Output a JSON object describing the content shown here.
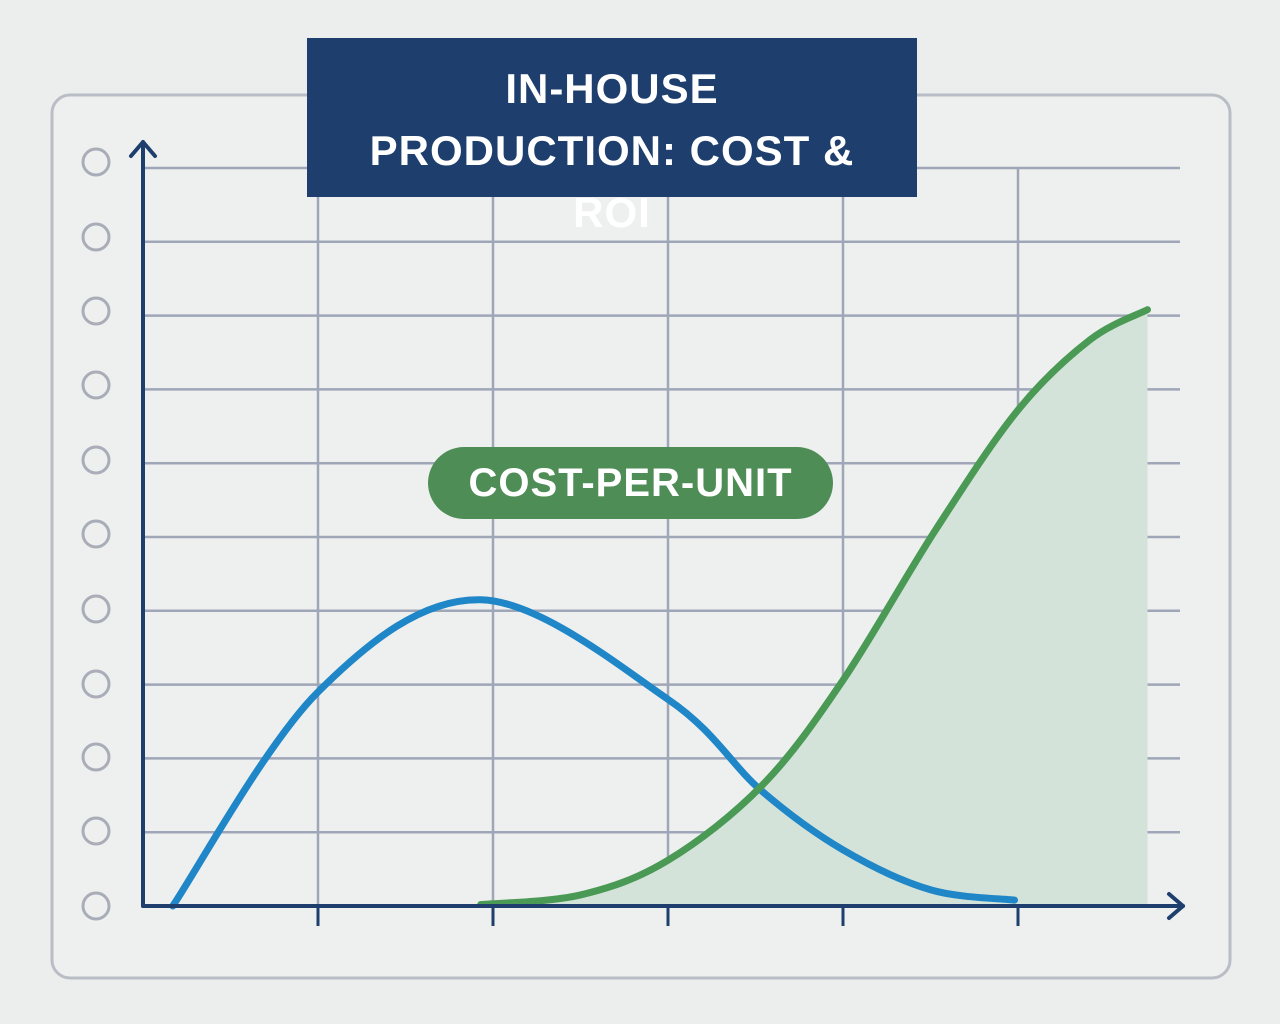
{
  "chart_data": {
    "type": "line",
    "title": "IN-HOUSE PRODUCTION: COST & ROI",
    "annotation": "COST-PER-UNIT",
    "xlim": [
      0,
      6
    ],
    "ylim": [
      0,
      10
    ],
    "xticks": [
      1,
      2,
      3,
      4,
      5
    ],
    "yticks": [
      0,
      1,
      2,
      3,
      4,
      5,
      6,
      7,
      8,
      9,
      10
    ],
    "grid": true,
    "series": [
      {
        "color": "#1f86c8",
        "area": false,
        "x": [
          0.17,
          1,
          1.93,
          3,
          3.53,
          4,
          4.5,
          4.98
        ],
        "values": [
          0,
          2.9,
          4.15,
          2.8,
          1.57,
          0.76,
          0.22,
          0.08
        ]
      },
      {
        "color": "#4a9a55",
        "area": true,
        "area_color": "#d3e3d9",
        "x": [
          1.93,
          2.5,
          3,
          3.54,
          4,
          4.53,
          5,
          5.41,
          5.74
        ],
        "values": [
          0.02,
          0.15,
          0.62,
          1.64,
          3.06,
          5.1,
          6.72,
          7.67,
          8.08
        ]
      }
    ]
  }
}
